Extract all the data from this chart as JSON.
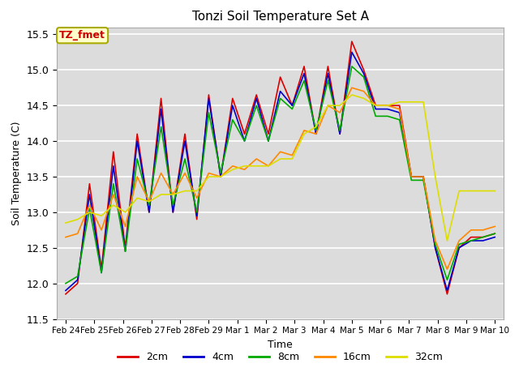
{
  "title": "Tonzi Soil Temperature Set A",
  "xlabel": "Time",
  "ylabel": "Soil Temperature (C)",
  "ylim": [
    11.5,
    15.6
  ],
  "plot_bg_color": "#dcdcdc",
  "fig_bg_color": "#ffffff",
  "annotation_text": "TZ_fmet",
  "annotation_bg": "#ffffcc",
  "annotation_border": "#aaaa00",
  "annotation_color": "#cc0000",
  "tick_labels": [
    "Feb 24",
    "Feb 25",
    "Feb 26",
    "Feb 27",
    "Feb 28",
    "Feb 29",
    "Mar 1",
    "Mar 2",
    "Mar 3",
    "Mar 4",
    "Mar 5",
    "Mar 6",
    "Mar 7",
    "Mar 8",
    "Mar 9",
    "Mar 10"
  ],
  "series_colors": [
    "#dd0000",
    "#0000cc",
    "#00aa00",
    "#ff8800",
    "#dddd00"
  ],
  "series_labels": [
    "2cm",
    "4cm",
    "8cm",
    "16cm",
    "32cm"
  ],
  "series_linewidth": 1.2,
  "data_2cm": [
    11.85,
    12.0,
    13.4,
    12.2,
    13.85,
    12.5,
    14.1,
    13.0,
    14.6,
    13.0,
    14.1,
    12.9,
    14.65,
    13.5,
    14.6,
    14.1,
    14.65,
    14.1,
    14.9,
    14.5,
    15.05,
    14.1,
    15.05,
    14.1,
    15.4,
    15.0,
    14.5,
    14.5,
    14.5,
    13.5,
    13.5,
    12.5,
    11.85,
    12.5,
    12.65,
    12.65,
    12.7
  ],
  "data_4cm": [
    11.9,
    12.05,
    13.25,
    12.15,
    13.65,
    12.45,
    14.0,
    13.0,
    14.45,
    13.0,
    14.0,
    12.95,
    14.6,
    13.5,
    14.5,
    14.0,
    14.6,
    14.0,
    14.7,
    14.5,
    14.95,
    14.1,
    14.95,
    14.1,
    15.25,
    14.95,
    14.45,
    14.45,
    14.4,
    13.5,
    13.5,
    12.5,
    11.9,
    12.5,
    12.6,
    12.6,
    12.65
  ],
  "data_8cm": [
    12.0,
    12.1,
    13.05,
    12.15,
    13.4,
    12.45,
    13.75,
    13.1,
    14.2,
    13.1,
    13.75,
    13.0,
    14.4,
    13.55,
    14.3,
    14.0,
    14.5,
    14.0,
    14.6,
    14.45,
    14.85,
    14.15,
    14.85,
    14.15,
    15.05,
    14.9,
    14.35,
    14.35,
    14.3,
    13.45,
    13.45,
    12.55,
    12.05,
    12.55,
    12.6,
    12.65,
    12.7
  ],
  "data_16cm": [
    12.65,
    12.7,
    13.1,
    12.75,
    13.25,
    12.8,
    13.5,
    13.15,
    13.55,
    13.25,
    13.55,
    13.2,
    13.55,
    13.5,
    13.65,
    13.6,
    13.75,
    13.65,
    13.85,
    13.8,
    14.15,
    14.1,
    14.5,
    14.4,
    14.75,
    14.7,
    14.5,
    14.5,
    14.45,
    13.5,
    13.5,
    12.6,
    12.2,
    12.6,
    12.75,
    12.75,
    12.8
  ],
  "data_32cm": [
    12.85,
    12.9,
    13.0,
    12.95,
    13.1,
    13.0,
    13.2,
    13.15,
    13.25,
    13.25,
    13.3,
    13.3,
    13.5,
    13.5,
    13.6,
    13.65,
    13.65,
    13.65,
    13.75,
    13.75,
    14.1,
    14.2,
    14.5,
    14.5,
    14.65,
    14.6,
    14.5,
    14.5,
    14.55,
    14.55,
    14.55,
    13.5,
    12.6,
    13.3,
    13.3,
    13.3,
    13.3
  ]
}
